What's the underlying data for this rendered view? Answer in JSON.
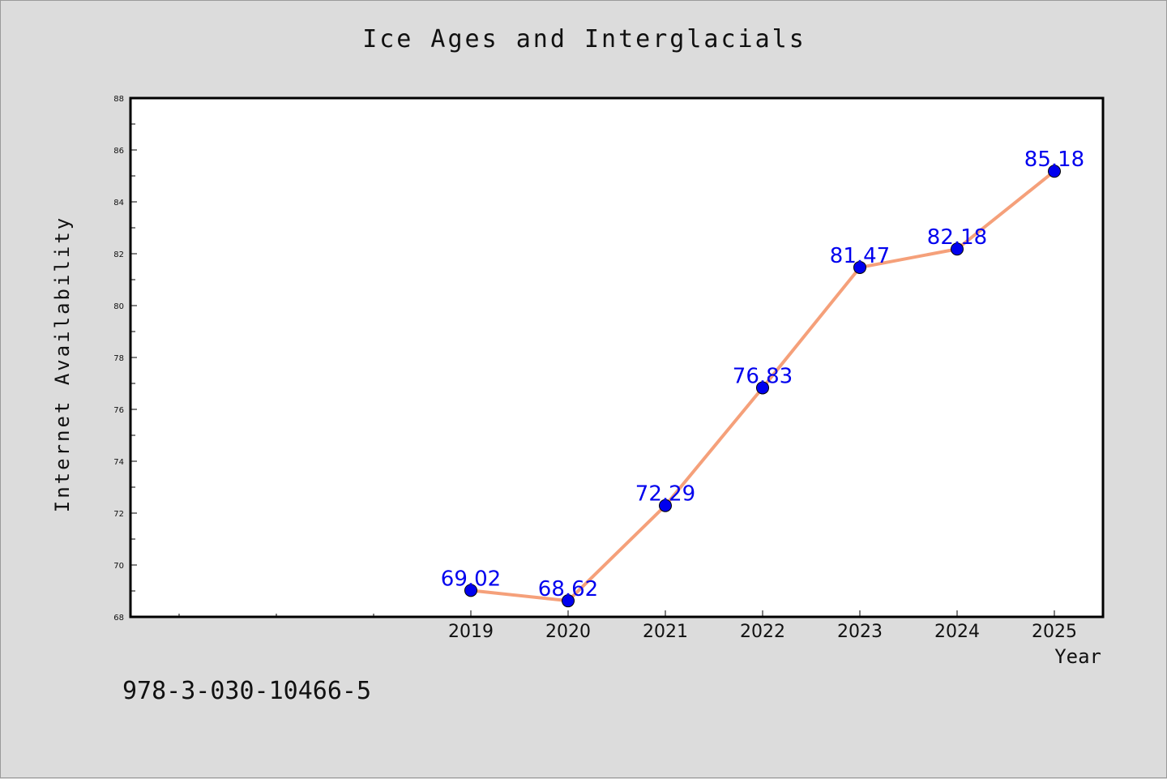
{
  "chart_data": {
    "type": "line",
    "title": "Ice Ages and Interglacials",
    "xlabel": "Year",
    "ylabel": "Internet Availability",
    "x": [
      "2019",
      "2020",
      "2021",
      "2022",
      "2023",
      "2024",
      "2025"
    ],
    "series": [
      {
        "values": [
          69.02,
          68.62,
          72.29,
          76.83,
          81.47,
          82.18,
          85.18
        ]
      }
    ],
    "data_labels": [
      "69.02",
      "68.62",
      "72.29",
      "76.83",
      "81.47",
      "82.18",
      "85.18"
    ],
    "ylim": [
      68,
      88
    ],
    "yticks": [
      "68",
      "70",
      "72",
      "74",
      "76",
      "78",
      "80",
      "82",
      "84",
      "86",
      "88"
    ],
    "grid": false,
    "legend": "none",
    "colors": {
      "line": "#f5a07a",
      "marker": "#0000ee",
      "label": "#0000ee",
      "plot_bg": "#ffffff",
      "figure_bg": "#dcdcdc"
    }
  },
  "annotation": "978-3-030-10466-5"
}
